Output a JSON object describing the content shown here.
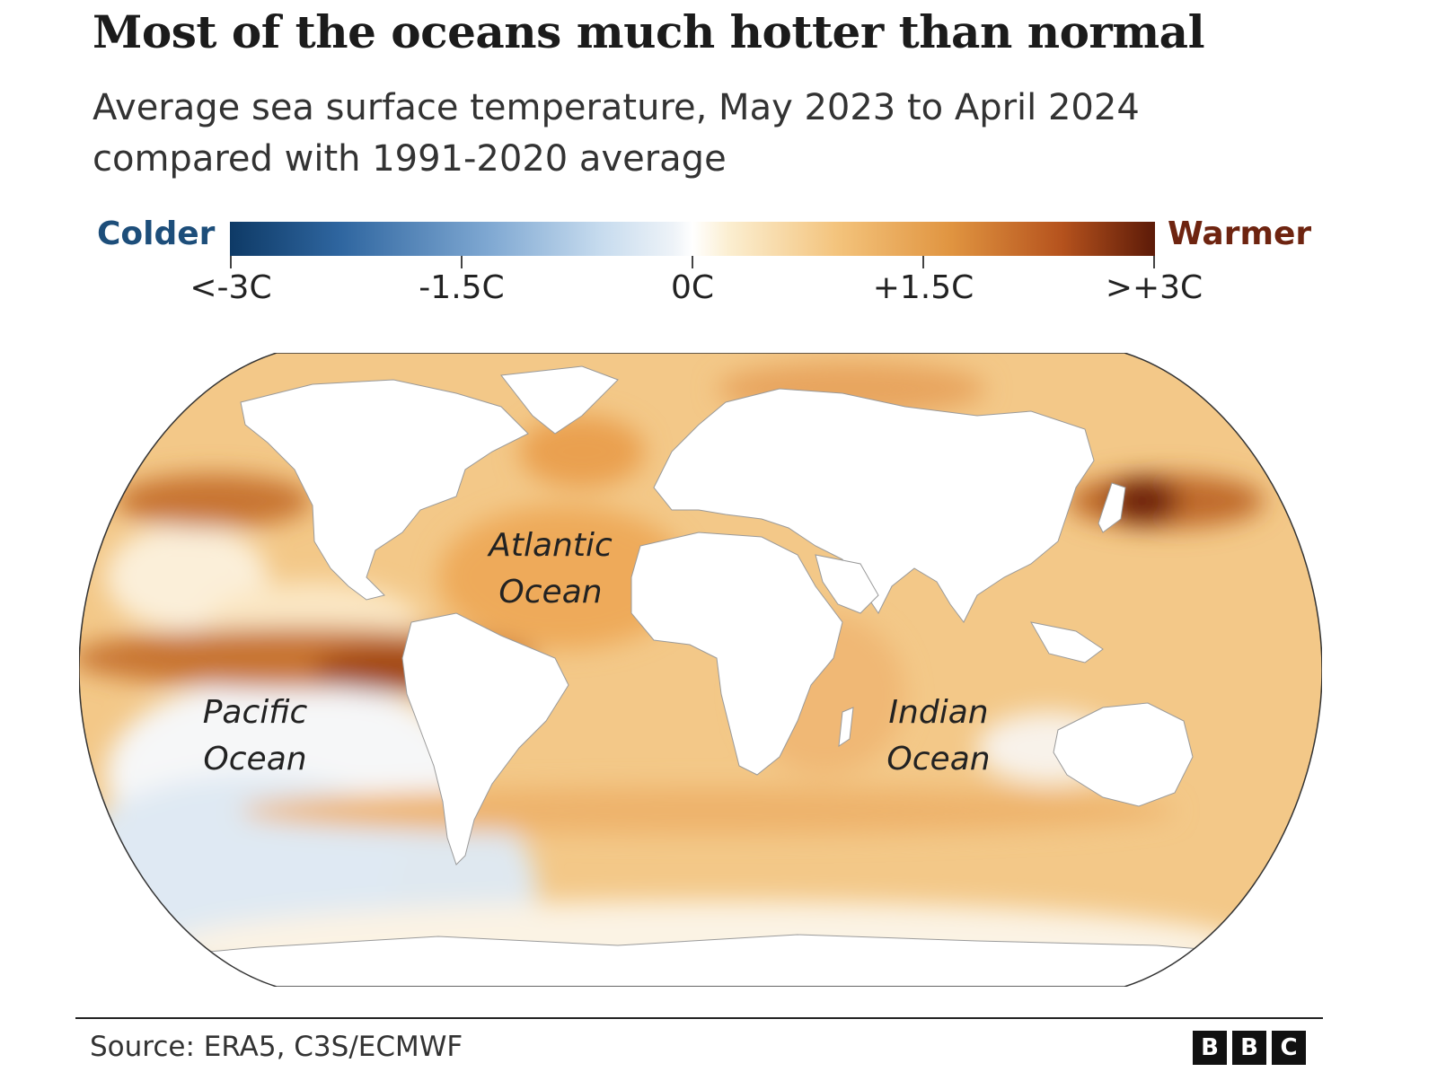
{
  "title": "Most of the oceans much hotter than normal",
  "subtitle": {
    "line1": "Average sea surface temperature, May 2023 to April 2024",
    "line2": "compared with 1991-2020 average"
  },
  "legend": {
    "low_label": "Colder",
    "high_label": "Warmer",
    "ticks": [
      "<-3C",
      "-1.5C",
      "0C",
      "+1.5C",
      ">+3C"
    ],
    "colors": {
      "cold_end": "#0e3a66",
      "neutral": "#ffffff",
      "warm_mid": "#e09440",
      "warm_end": "#5c1a08"
    }
  },
  "map": {
    "labels": {
      "atlantic_line1": "Atlantic",
      "atlantic_line2": "Ocean",
      "pacific_line1": "Pacific",
      "pacific_line2": "Ocean",
      "indian_line1": "Indian",
      "indian_line2": "Ocean"
    },
    "land_color": "#ffffff"
  },
  "footer": {
    "source": "Source: ERA5, C3S/ECMWF",
    "logo_letters": [
      "B",
      "B",
      "C"
    ]
  }
}
